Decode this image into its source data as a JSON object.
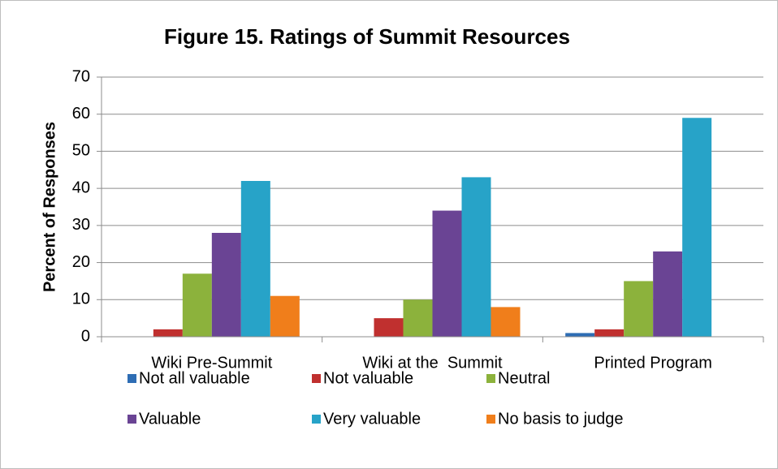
{
  "chart_data": {
    "type": "bar",
    "title": "Figure 15. Ratings of Summit Resources",
    "y_label": "Percent of Responses",
    "categories": [
      "Wiki Pre-Summit",
      "Wiki at the  Summit",
      "Printed Program"
    ],
    "series": [
      {
        "name": "Not all valuable",
        "color": "#2e6db4",
        "values": [
          0,
          0,
          1
        ]
      },
      {
        "name": "Not valuable",
        "color": "#c0302f",
        "values": [
          2,
          5,
          2
        ]
      },
      {
        "name": "Neutral",
        "color": "#8cb23c",
        "values": [
          17,
          10,
          15
        ]
      },
      {
        "name": "Valuable",
        "color": "#6a4494",
        "values": [
          28,
          34,
          23
        ]
      },
      {
        "name": "Very valuable",
        "color": "#27a3c8",
        "values": [
          42,
          43,
          59
        ]
      },
      {
        "name": "No basis to judge",
        "color": "#f07e1b",
        "values": [
          11,
          8,
          0
        ]
      }
    ],
    "ylim": [
      0,
      70
    ],
    "yticks": [
      0,
      10,
      20,
      30,
      40,
      50,
      60,
      70
    ],
    "grid": true,
    "legend": "bottom"
  }
}
